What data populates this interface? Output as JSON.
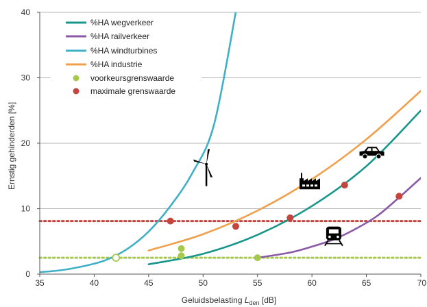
{
  "chart_data": {
    "type": "line",
    "xlabel_main": "Geluidsbelasting ",
    "xlabel_symbol": "L",
    "xlabel_sub": "den",
    "xlabel_unit": " [dB]",
    "ylabel": "Ernstig gehinderden [%]",
    "xlim": [
      35,
      70
    ],
    "ylim": [
      0,
      40
    ],
    "x_ticks": [
      "35",
      "40",
      "45",
      "50",
      "55",
      "60",
      "65",
      "70"
    ],
    "y_ticks": [
      "0",
      "10",
      "20",
      "30",
      "40"
    ],
    "grid": "horizontal",
    "legend_position": "top-left",
    "series": [
      {
        "name": "%HA wegverkeer",
        "color": "#17958a",
        "x": [
          45,
          50,
          55,
          60,
          65,
          70
        ],
        "y": [
          1.5,
          3.1,
          6.0,
          10.4,
          16.5,
          25.0
        ]
      },
      {
        "name": "%HA railverkeer",
        "color": "#8a5aa6",
        "x": [
          55,
          58,
          60,
          62,
          64,
          66,
          68,
          70
        ],
        "y": [
          2.5,
          3.3,
          4.2,
          5.3,
          6.9,
          8.9,
          11.7,
          14.7
        ]
      },
      {
        "name": "%HA windturbines",
        "color": "#3fb0c6",
        "x": [
          35,
          37,
          39,
          41,
          43,
          45,
          47,
          49,
          51,
          53
        ],
        "y": [
          0.3,
          0.6,
          1.2,
          2.1,
          3.8,
          6.5,
          10.4,
          15.4,
          22.8,
          40.0
        ]
      },
      {
        "name": "%HA industrie",
        "color": "#f0a04c",
        "x": [
          45,
          50,
          55,
          60,
          65,
          70
        ],
        "y": [
          3.6,
          6.1,
          9.7,
          14.5,
          20.6,
          28.0
        ]
      }
    ],
    "threshold_lines": [
      {
        "name": "voorkeursgrenswaarde",
        "color": "#a6c84e",
        "y": 2.5
      },
      {
        "name": "maximale grenswaarde",
        "color": "#c4443e",
        "y": 8.1
      }
    ],
    "points": [
      {
        "series": "voorkeursgrenswaarde",
        "color": "#a6c84e",
        "x": 48,
        "y": 3.9,
        "filled": true
      },
      {
        "series": "voorkeursgrenswaarde",
        "color": "#a6c84e",
        "x": 48,
        "y": 2.8,
        "filled": true
      },
      {
        "series": "voorkeursgrenswaarde",
        "color": "#a6c84e",
        "x": 55,
        "y": 2.5,
        "filled": true
      },
      {
        "series": "voorkeursgrenswaarde",
        "color": "#a6c84e",
        "x": 42,
        "y": 2.5,
        "filled": false
      },
      {
        "series": "maximale grenswaarde",
        "color": "#c4443e",
        "x": 47,
        "y": 8.1,
        "filled": true
      },
      {
        "series": "maximale grenswaarde",
        "color": "#c4443e",
        "x": 53,
        "y": 7.3,
        "filled": true
      },
      {
        "series": "maximale grenswaarde",
        "color": "#c4443e",
        "x": 58,
        "y": 8.6,
        "filled": true
      },
      {
        "series": "maximale grenswaarde",
        "color": "#c4443e",
        "x": 63,
        "y": 13.6,
        "filled": true
      },
      {
        "series": "maximale grenswaarde",
        "color": "#c4443e",
        "x": 68,
        "y": 11.9,
        "filled": true
      }
    ],
    "legend": [
      {
        "label": "%HA wegverkeer",
        "kind": "line",
        "color": "#17958a"
      },
      {
        "label": "%HA railverkeer",
        "kind": "line",
        "color": "#8a5aa6"
      },
      {
        "label": "%HA windturbines",
        "kind": "line",
        "color": "#3fb0c6"
      },
      {
        "label": "%HA industrie",
        "kind": "line",
        "color": "#f0a04c"
      },
      {
        "label": "voorkeursgrenswaarde",
        "kind": "marker",
        "color": "#a6c84e"
      },
      {
        "label": "maximale grenswaarde",
        "kind": "marker",
        "color": "#c4443e"
      }
    ],
    "icons": [
      {
        "name": "wind-turbine-icon",
        "x": 50.3,
        "y": 16.8
      },
      {
        "name": "factory-icon",
        "x": 59.8,
        "y": 14.0
      },
      {
        "name": "car-icon",
        "x": 65.5,
        "y": 18.5
      },
      {
        "name": "train-icon",
        "x": 62.0,
        "y": 5.8
      }
    ]
  }
}
